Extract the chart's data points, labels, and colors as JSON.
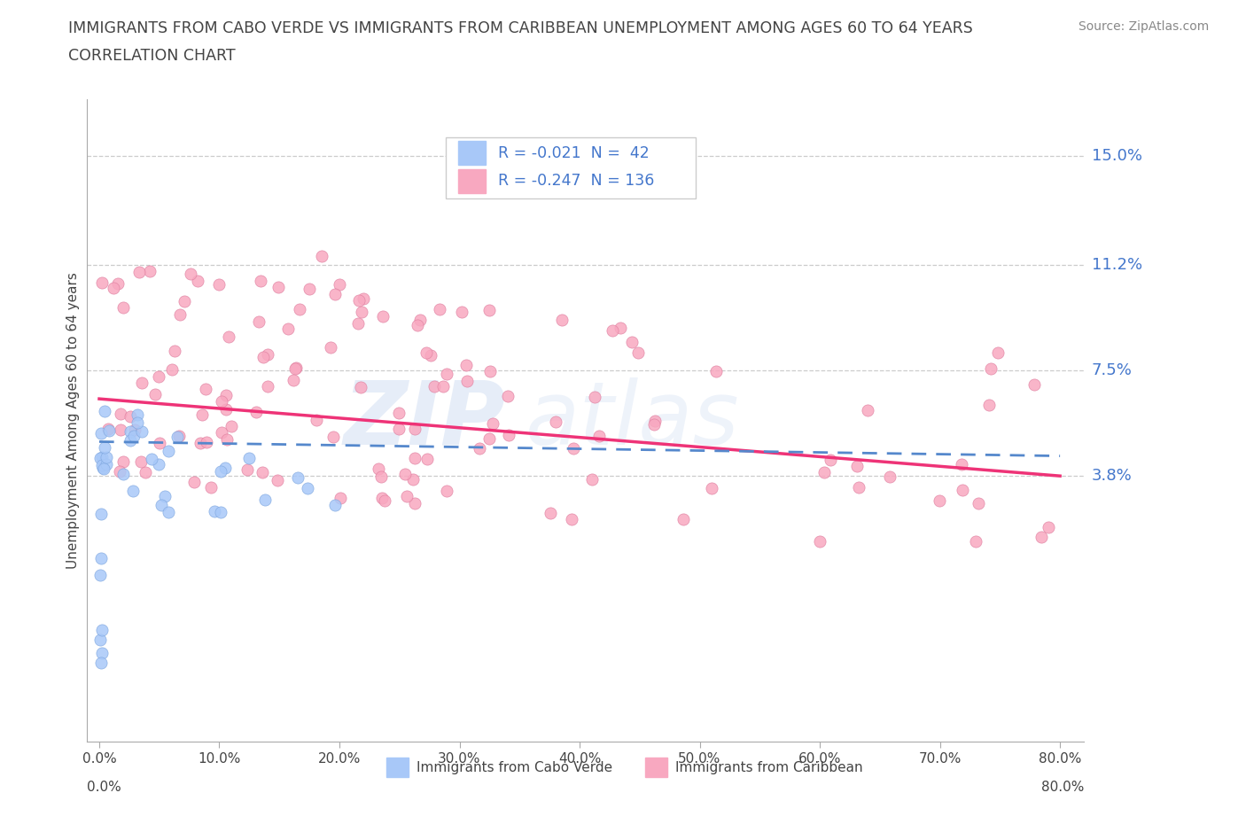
{
  "title_line1": "IMMIGRANTS FROM CABO VERDE VS IMMIGRANTS FROM CARIBBEAN UNEMPLOYMENT AMONG AGES 60 TO 64 YEARS",
  "title_line2": "CORRELATION CHART",
  "source_text": "Source: ZipAtlas.com",
  "watermark_zip": "ZIP",
  "watermark_atlas": "atlas",
  "ylabel": "Unemployment Among Ages 60 to 64 years",
  "xlim": [
    -0.01,
    0.82
  ],
  "ylim": [
    -0.055,
    0.17
  ],
  "yticks": [
    0.038,
    0.075,
    0.112,
    0.15
  ],
  "ytick_labels": [
    "3.8%",
    "7.5%",
    "11.2%",
    "15.0%"
  ],
  "xtick_positions": [
    0.0,
    0.1,
    0.2,
    0.3,
    0.4,
    0.5,
    0.6,
    0.7,
    0.8
  ],
  "xtick_labels": [
    "0.0%",
    "10.0%",
    "20.0%",
    "30.0%",
    "40.0%",
    "50.0%",
    "60.0%",
    "70.0%",
    "80.0%"
  ],
  "cabo_verde_color": "#a8c8f8",
  "caribbean_color": "#f8a8c0",
  "cabo_verde_line_color": "#5588cc",
  "caribbean_line_color": "#ee3377",
  "label_color": "#4477cc",
  "text_color": "#444444",
  "grid_color": "#cccccc",
  "legend_text_R1": "R = -0.021  N =  42",
  "legend_text_R2": "R = -0.247  N = 136",
  "bottom_label1": "Immigrants from Cabo Verde",
  "bottom_label2": "Immigrants from Caribbean"
}
